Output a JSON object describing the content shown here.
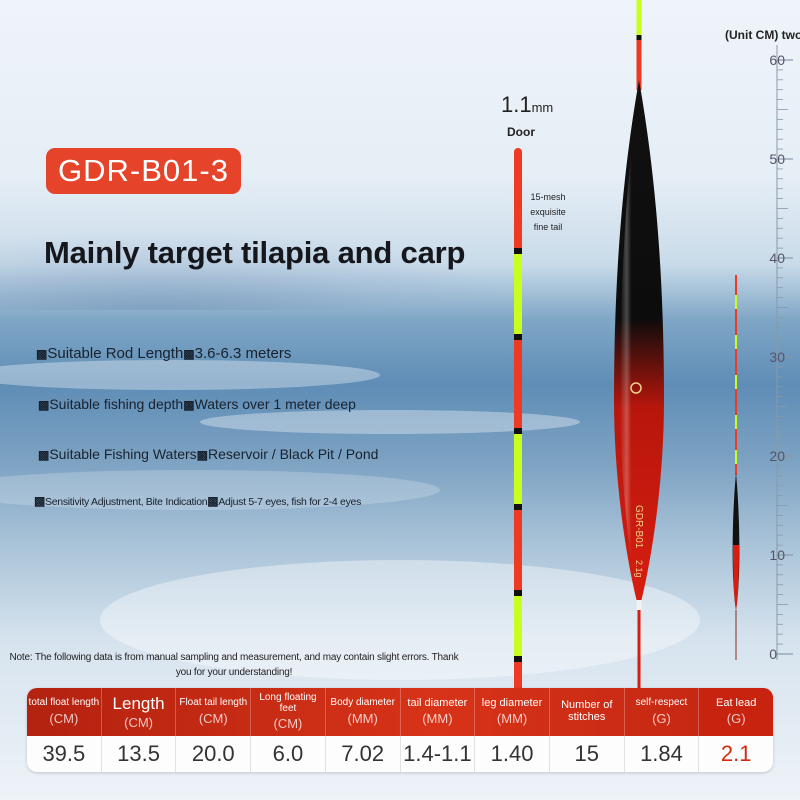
{
  "product": {
    "model": "GDR-B01-3",
    "headline": "Mainly target tilapia and carp"
  },
  "specs": [
    {
      "label": "Suitable Rod Length",
      "value": "3.6-6.3 meters"
    },
    {
      "label": "Suitable fishing depth",
      "value": "Waters over 1 meter deep"
    },
    {
      "label": "Suitable Fishing Waters",
      "value": "Reservoir / Black Pit / Pond"
    },
    {
      "label": "Sensitivity Adjustment, Bite Indication",
      "value": "Adjust 5-7 eyes, fish for 2-4 eyes"
    }
  ],
  "spec_box_glyph": "▩",
  "float_detail": {
    "diameter": "1.1",
    "diameter_unit": "mm",
    "door_label": "Door",
    "mesh_note": "15-mesh exquisite fine tail"
  },
  "scale": {
    "unit_label": "(Unit CM) two",
    "ticks": [
      "60",
      "50",
      "40",
      "30",
      "20",
      "10",
      "0"
    ]
  },
  "float_body_text": [
    "GDR-B01",
    "2.1g"
  ],
  "note": "Note: The following data is from manual sampling and measurement, and may contain slight errors. Thank you for your understanding!",
  "table": {
    "headers": [
      {
        "top": "total float length",
        "unit": "(CM)",
        "style": "small"
      },
      {
        "top": "Length",
        "unit": "(CM)",
        "style": "big"
      },
      {
        "top": "Float tail length",
        "unit": "(CM)",
        "style": "small"
      },
      {
        "top": "Long floating feet",
        "unit": "(CM)",
        "style": "small"
      },
      {
        "top": "Body diameter",
        "unit": "(MM)",
        "style": "small"
      },
      {
        "top": "tail diameter",
        "unit": "(MM)",
        "style": "mid"
      },
      {
        "top": "leg diameter",
        "unit": "(MM)",
        "style": "mid"
      },
      {
        "top": "Number of stitches",
        "unit": "",
        "style": "mid"
      },
      {
        "top": "self-respect",
        "unit": "(G)",
        "style": "small"
      },
      {
        "top": "Eat lead",
        "unit": "(G)",
        "style": "mid"
      }
    ],
    "values": [
      "39.5",
      "13.5",
      "20.0",
      "6.0",
      "7.02",
      "1.4-1.1",
      "1.40",
      "15",
      "1.84",
      "2.1"
    ]
  },
  "colors": {
    "accent_red": "#e5432a",
    "table_red": "#c8230f",
    "tail_green": "#c8ff1e",
    "tail_red": "#ee3a22",
    "body_black": "#0c0c0c"
  }
}
